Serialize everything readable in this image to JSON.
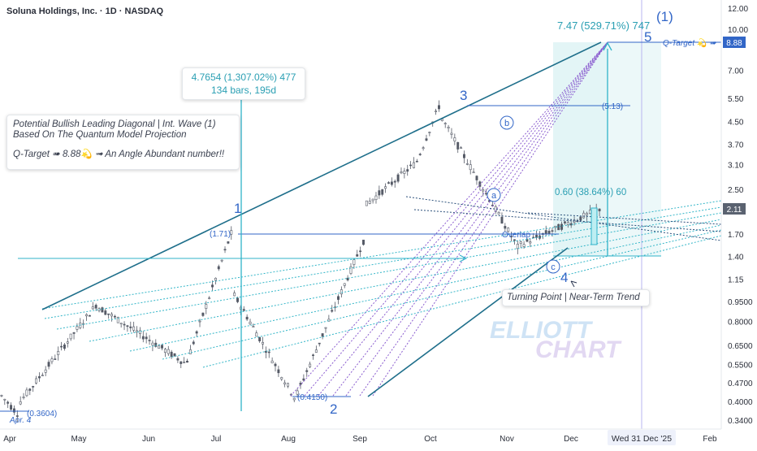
{
  "header": {
    "title": "Soluna Holdings, Inc. · 1D · NASDAQ"
  },
  "watermark": {
    "line1": "ELLIOTT",
    "line2": "CHART"
  },
  "notes": {
    "projection_line1": "Potential Bullish Leading Diagonal | Int. Wave (1)",
    "projection_line2": "Based On The Quantum Model Projection",
    "qtarget_text": "Q-Target ➠ 8.88💫 ➟ An Angle Abundant number!!",
    "turning_point": "Turning Point | Near-Term Trend"
  },
  "measures": {
    "left_line1": "4.7654 (1,307.02%) 477",
    "left_line2": "134 bars, 195d",
    "top_right": "7.47 (529.71%) 747",
    "current": "0.60 (38.64%) 60"
  },
  "chart_data": {
    "type": "candlestick",
    "title": "Soluna Holdings, Inc. · 1D · NASDAQ",
    "x_ticks": [
      "Apr",
      "May",
      "Jun",
      "Jul",
      "Aug",
      "Sep",
      "Oct",
      "Nov",
      "Dec",
      "Wed 31 Dec '25",
      "Feb"
    ],
    "y_ticks": [
      "12.00",
      "10.00",
      "8.88",
      "7.00",
      "5.50",
      "4.50",
      "3.70",
      "3.10",
      "2.50",
      "2.11",
      "1.70",
      "1.40",
      "1.15",
      "0.9500",
      "0.8000",
      "0.6500",
      "0.5500",
      "0.4700",
      "0.4000",
      "0.3400"
    ],
    "y_scale": "log",
    "last_price": "2.11",
    "q_target": "8.88",
    "q_target_label": "Q-Target 💫 ➠",
    "crosshair_date": "Wed 31 Dec '25",
    "wave_labels": [
      "1",
      "2",
      "3",
      "4",
      "5",
      "(1)"
    ],
    "sub_wave_labels": [
      "a",
      "b",
      "c"
    ],
    "level_labels": [
      "(1.71)",
      "(5.13)",
      "(0.4150)",
      "(0.3604)",
      "Overlap",
      "Apr. 4"
    ],
    "annotations": [
      "Potential Bullish Leading Diagonal | Int. Wave (1)",
      "Based On The Quantum Model Projection",
      "Q-Target ➠ 8.88💫 ➟ An Angle Abundant number!!",
      "Turning Point | Near-Term Trend",
      "4.7654 (1,307.02%) 477",
      "134 bars, 195d",
      "7.47 (529.71%) 747",
      "0.60 (38.64%) 60"
    ],
    "series": [
      {
        "segments": [
          {
            "from": "2025-03-28",
            "to": "2025-04-04",
            "open": 0.42,
            "close": 0.3604,
            "days": 6
          },
          {
            "from": "2025-04-07",
            "to": "2025-05-12",
            "open": 0.4,
            "close": 0.92,
            "days": 25
          },
          {
            "from": "2025-05-13",
            "to": "2025-06-20",
            "open": 0.9,
            "close": 0.56,
            "days": 28
          },
          {
            "from": "2025-06-23",
            "to": "2025-07-14",
            "open": 0.57,
            "close": 1.71,
            "days": 15
          },
          {
            "from": "2025-07-15",
            "to": "2025-08-12",
            "open": 1.0,
            "close": 0.415,
            "days": 20
          },
          {
            "from": "2025-08-13",
            "to": "2025-09-12",
            "open": 0.43,
            "close": 1.6,
            "days": 22
          },
          {
            "from": "2025-09-15",
            "to": "2025-10-06",
            "open": 2.2,
            "close": 3.1,
            "days": 16
          },
          {
            "from": "2025-10-07",
            "to": "2025-10-16",
            "open": 3.2,
            "close": 5.13,
            "days": 8
          },
          {
            "from": "2025-10-17",
            "to": "2025-11-21",
            "open": 4.6,
            "close": 1.52,
            "days": 25
          },
          {
            "from": "2025-11-24",
            "to": "2025-12-31",
            "open": 1.55,
            "close": 2.11,
            "days": 26
          }
        ]
      }
    ]
  }
}
